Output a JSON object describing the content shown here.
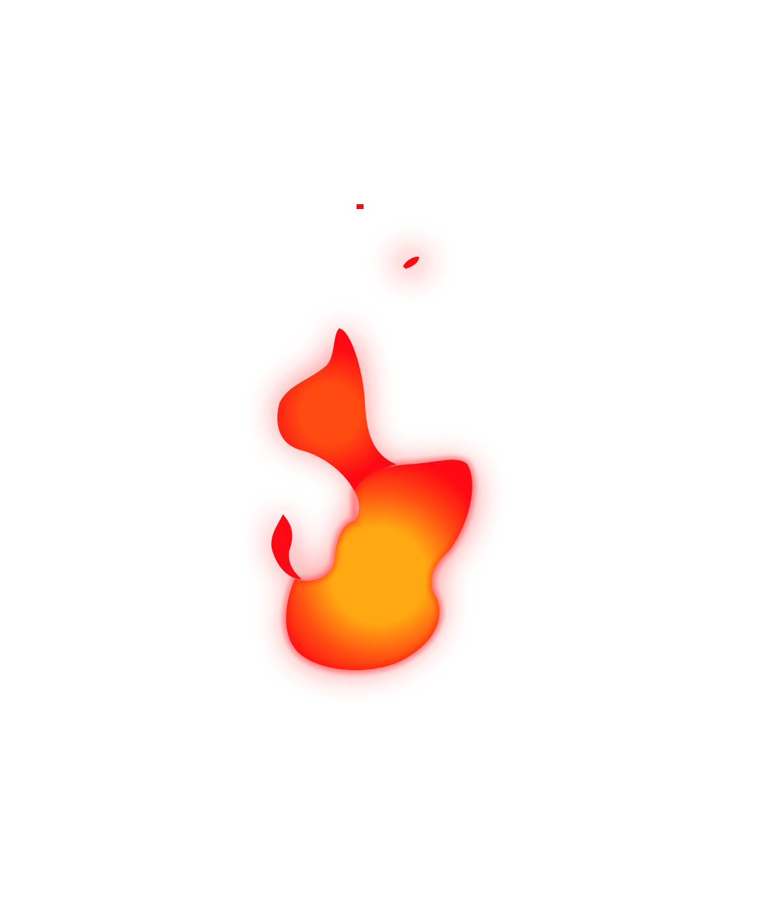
{
  "scene": {
    "subject": "flame-icon",
    "colors": {
      "background": "#ffffff",
      "outer": "#ff0a14",
      "mid": "#ff4a12",
      "core": "#ffa812",
      "glow": "#ff2a2a"
    }
  }
}
